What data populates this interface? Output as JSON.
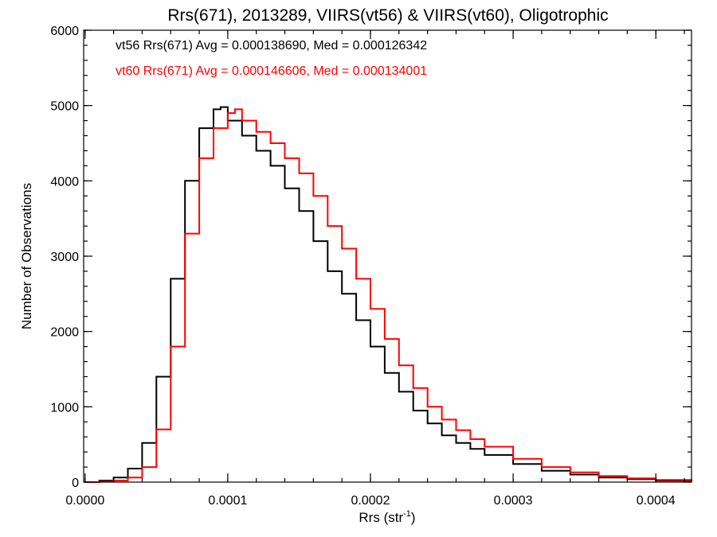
{
  "chart_data": {
    "type": "line",
    "title": "Rrs(671), 2013289, VIIRS(vt56) & VIIRS(vt60), Oligotrophic",
    "xlabel": "Rrs (str",
    "xlabel_superscript": "-1",
    "xlabel_suffix": ")",
    "ylabel": "Number of Observations",
    "xlim": [
      -1e-06,
      0.000425
    ],
    "ylim": [
      0,
      6000
    ],
    "x_ticks": [
      0.0,
      0.0001,
      0.0002,
      0.0003,
      0.0004
    ],
    "x_tick_labels": [
      "0.0000",
      "0.0001",
      "0.0002",
      "0.0003",
      "0.0004"
    ],
    "y_ticks": [
      0,
      1000,
      2000,
      3000,
      4000,
      5000,
      6000
    ],
    "y_tick_labels": [
      "0",
      "1000",
      "2000",
      "3000",
      "4000",
      "5000",
      "6000"
    ],
    "grid": false,
    "legend_placement": "top-left",
    "series": [
      {
        "name": "vt56 Rrs(671) Avg = 0.000138690, Med = 0.000126342",
        "color": "#000000",
        "x": [
          0.0,
          1e-05,
          2e-05,
          3e-05,
          4e-05,
          5e-05,
          6e-05,
          7e-05,
          8e-05,
          9e-05,
          9.5e-05,
          0.0001,
          0.00011,
          0.00012,
          0.00013,
          0.00014,
          0.00015,
          0.00016,
          0.00017,
          0.00018,
          0.00019,
          0.0002,
          0.00021,
          0.00022,
          0.00023,
          0.00024,
          0.00025,
          0.00026,
          0.00027,
          0.00028,
          0.0003,
          0.00032,
          0.00034,
          0.00036,
          0.00038,
          0.0004,
          0.000425
        ],
        "values": [
          0,
          20,
          60,
          180,
          520,
          1400,
          2700,
          4000,
          4700,
          4950,
          4980,
          4800,
          4600,
          4400,
          4200,
          3900,
          3600,
          3200,
          2800,
          2500,
          2150,
          1800,
          1450,
          1200,
          950,
          780,
          620,
          520,
          440,
          360,
          240,
          150,
          100,
          60,
          40,
          20,
          10
        ]
      },
      {
        "name": "vt60 Rrs(671) Avg = 0.000146606, Med = 0.000134001",
        "color": "#ff0000",
        "x": [
          0.0,
          1e-05,
          2e-05,
          3e-05,
          4e-05,
          5e-05,
          6e-05,
          7e-05,
          8e-05,
          9e-05,
          0.0001,
          0.000105,
          0.00011,
          0.00012,
          0.00013,
          0.00014,
          0.00015,
          0.00016,
          0.00017,
          0.00018,
          0.00019,
          0.0002,
          0.00021,
          0.00022,
          0.00023,
          0.00024,
          0.00025,
          0.00026,
          0.00027,
          0.00028,
          0.0003,
          0.00032,
          0.00034,
          0.00036,
          0.00038,
          0.0004,
          0.000425
        ],
        "values": [
          0,
          5,
          20,
          60,
          200,
          700,
          1800,
          3300,
          4300,
          4700,
          4900,
          4950,
          4800,
          4650,
          4500,
          4300,
          4100,
          3800,
          3400,
          3100,
          2700,
          2300,
          1900,
          1550,
          1250,
          1000,
          830,
          690,
          570,
          470,
          310,
          200,
          130,
          80,
          50,
          30,
          15
        ]
      }
    ]
  }
}
